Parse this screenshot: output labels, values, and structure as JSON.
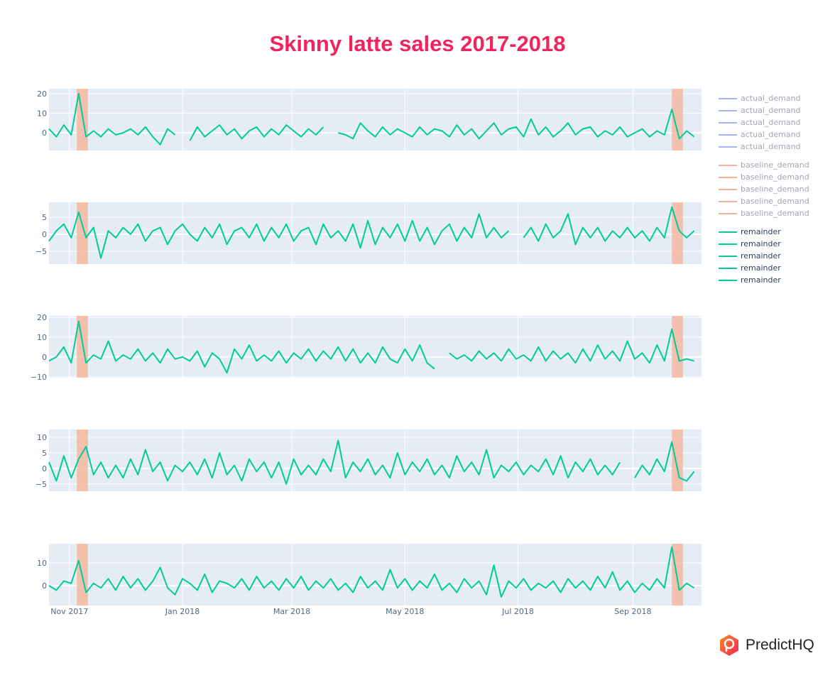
{
  "title": "Skinny latte sales 2017-2018",
  "colors": {
    "title": "#f0245f",
    "plot_bg": "#e5ecf6",
    "grid": "#ffffff",
    "remainder": "#00cc96",
    "actual_demand": "#aab2f5",
    "baseline_demand": "#f3b39c",
    "band": "#f4b9a0",
    "legend_muted_text": "#a0a6b4",
    "legend_text": "#2a3f5f",
    "axis_text": "#506784"
  },
  "legend": {
    "groups": [
      {
        "key": "actual_demand",
        "items": [
          "actual_demand",
          "actual_demand",
          "actual_demand",
          "actual_demand",
          "actual_demand"
        ],
        "muted": true
      },
      {
        "key": "baseline_demand",
        "items": [
          "baseline_demand",
          "baseline_demand",
          "baseline_demand",
          "baseline_demand",
          "baseline_demand"
        ],
        "muted": true
      },
      {
        "key": "remainder",
        "items": [
          "remainder",
          "remainder",
          "remainder",
          "remainder",
          "remainder"
        ],
        "muted": false
      }
    ]
  },
  "logo": {
    "text": "PredictHQ",
    "icon": "map-pin-hexagon-icon"
  },
  "chart_data": {
    "type": "line",
    "x_range": [
      "2017-10-21",
      "2018-10-08"
    ],
    "x_ticks": [
      [
        "2017-11-01",
        "Nov 2017"
      ],
      [
        "2018-01-01",
        "Jan 2018"
      ],
      [
        "2018-03-01",
        "Mar 2018"
      ],
      [
        "2018-05-01",
        "May 2018"
      ],
      [
        "2018-07-01",
        "Jul 2018"
      ],
      [
        "2018-09-01",
        "Sep 2018"
      ]
    ],
    "highlight_bands": [
      [
        "2017-11-05",
        "2017-11-11"
      ],
      [
        "2018-09-22",
        "2018-09-28"
      ]
    ],
    "grid": true,
    "legend_position": "right",
    "x": [
      "2017-10-21",
      "2017-10-25",
      "2017-10-29",
      "2017-11-02",
      "2017-11-06",
      "2017-11-10",
      "2017-11-14",
      "2017-11-18",
      "2017-11-22",
      "2017-11-26",
      "2017-11-30",
      "2017-12-04",
      "2017-12-08",
      "2017-12-12",
      "2017-12-16",
      "2017-12-20",
      "2017-12-24",
      "2017-12-28",
      "2018-01-01",
      "2018-01-05",
      "2018-01-09",
      "2018-01-13",
      "2018-01-17",
      "2018-01-21",
      "2018-01-25",
      "2018-01-29",
      "2018-02-02",
      "2018-02-06",
      "2018-02-10",
      "2018-02-14",
      "2018-02-18",
      "2018-02-22",
      "2018-02-26",
      "2018-03-02",
      "2018-03-06",
      "2018-03-10",
      "2018-03-14",
      "2018-03-18",
      "2018-03-22",
      "2018-03-26",
      "2018-03-30",
      "2018-04-03",
      "2018-04-07",
      "2018-04-11",
      "2018-04-15",
      "2018-04-19",
      "2018-04-23",
      "2018-04-27",
      "2018-05-01",
      "2018-05-05",
      "2018-05-09",
      "2018-05-13",
      "2018-05-17",
      "2018-05-21",
      "2018-05-25",
      "2018-05-29",
      "2018-06-02",
      "2018-06-06",
      "2018-06-10",
      "2018-06-14",
      "2018-06-18",
      "2018-06-22",
      "2018-06-26",
      "2018-06-30",
      "2018-07-04",
      "2018-07-08",
      "2018-07-12",
      "2018-07-16",
      "2018-07-20",
      "2018-07-24",
      "2018-07-28",
      "2018-08-01",
      "2018-08-05",
      "2018-08-09",
      "2018-08-13",
      "2018-08-17",
      "2018-08-21",
      "2018-08-25",
      "2018-08-29",
      "2018-09-02",
      "2018-09-06",
      "2018-09-10",
      "2018-09-14",
      "2018-09-18",
      "2018-09-22",
      "2018-09-26",
      "2018-09-30",
      "2018-10-04"
    ],
    "panels": [
      {
        "series": "remainder",
        "ylim": [
          -9,
          22.5
        ],
        "y_ticks": [
          0,
          10,
          20
        ],
        "values": [
          2,
          -2,
          4,
          -1,
          20,
          -2,
          1,
          -2,
          2,
          -1,
          0,
          2,
          -1,
          3,
          -2,
          -6,
          2,
          -1,
          null,
          -4,
          3,
          -2,
          1,
          4,
          -1,
          2,
          -3,
          1,
          3,
          -2,
          2,
          -1,
          4,
          1,
          -2,
          2,
          -1,
          3,
          null,
          0,
          -1,
          -3,
          5,
          1,
          -2,
          3,
          -1,
          2,
          0,
          -2,
          3,
          -1,
          2,
          1,
          -2,
          4,
          -1,
          2,
          -3,
          1,
          5,
          -1,
          2,
          3,
          -2,
          7,
          -1,
          3,
          -2,
          1,
          5,
          -1,
          2,
          3,
          -2,
          1,
          -1,
          3,
          -2,
          0,
          2,
          -2,
          1,
          -1,
          12,
          -3,
          1,
          -2
        ]
      },
      {
        "series": "remainder",
        "ylim": [
          -8.75,
          9.4
        ],
        "y_ticks": [
          -5,
          0,
          5
        ],
        "values": [
          -2,
          1,
          3,
          -1,
          6.5,
          -1,
          2,
          -7,
          1,
          -1,
          2,
          0,
          3,
          -2,
          1,
          2,
          -3,
          1,
          3,
          0,
          -2,
          2,
          -1,
          3,
          -3,
          1,
          2,
          -1,
          3,
          -2,
          2,
          -1,
          3,
          -2,
          1,
          2,
          -3,
          3,
          -1,
          1,
          -2,
          3,
          -4,
          4,
          -3,
          2,
          -1,
          3,
          -2,
          4,
          -2,
          2,
          -3,
          1,
          3,
          -2,
          2,
          -1,
          6,
          -1,
          2,
          -1,
          1,
          null,
          -1,
          2,
          -2,
          3,
          -1,
          1,
          6,
          -3,
          2,
          -1,
          2,
          -2,
          1,
          -1,
          2,
          -1,
          1,
          -2,
          2,
          -1,
          8,
          1,
          -1,
          1
        ]
      },
      {
        "series": "remainder",
        "ylim": [
          -10.4,
          20.7
        ],
        "y_ticks": [
          -10,
          0,
          10,
          20
        ],
        "values": [
          -2,
          0,
          5,
          -3,
          18,
          -3,
          1,
          -1,
          8,
          -2,
          1,
          -1,
          4,
          -2,
          2,
          -3,
          4,
          -1,
          0,
          -2,
          3,
          -5,
          2,
          -1,
          -8,
          4,
          -1,
          6,
          -2,
          1,
          -2,
          3,
          -3,
          2,
          -1,
          4,
          -2,
          3,
          -1,
          5,
          -2,
          4,
          -3,
          2,
          -3,
          5,
          -1,
          -3,
          4,
          -2,
          6,
          -3,
          -6,
          null,
          2,
          -1,
          1,
          -2,
          3,
          -1,
          2,
          -2,
          4,
          -1,
          1,
          -2,
          5,
          -2,
          3,
          -1,
          2,
          -3,
          4,
          -2,
          6,
          -1,
          3,
          -2,
          8,
          -1,
          2,
          -3,
          6,
          -2,
          14,
          -2,
          -1,
          -2
        ]
      },
      {
        "series": "remainder",
        "ylim": [
          -7.3,
          12.5
        ],
        "y_ticks": [
          -5,
          0,
          5,
          10
        ],
        "values": [
          2,
          -4,
          4,
          -3,
          3,
          7,
          -2,
          2,
          -3,
          1,
          -3,
          3,
          -2,
          6,
          -1,
          2,
          -4,
          1,
          -1,
          2,
          -2,
          3,
          -3,
          5,
          -2,
          1,
          -4,
          3,
          -1,
          2,
          -3,
          2,
          -5,
          3,
          -2,
          1,
          -2,
          3,
          -1,
          9,
          -3,
          2,
          -1,
          3,
          -2,
          1,
          -3,
          5,
          -2,
          2,
          -1,
          3,
          -2,
          1,
          -3,
          4,
          -1,
          2,
          -2,
          6,
          -3,
          1,
          -1,
          2,
          -2,
          1,
          -1,
          3,
          -2,
          4,
          -3,
          2,
          -1,
          3,
          -2,
          1,
          -2,
          2,
          null,
          -3,
          1,
          -2,
          3,
          -1,
          8.5,
          -3,
          -4,
          -1
        ]
      },
      {
        "series": "remainder",
        "ylim": [
          -8.75,
          18.4
        ],
        "y_ticks": [
          0,
          10
        ],
        "values": [
          0,
          -2,
          2,
          1,
          11,
          -3,
          1,
          -1,
          3,
          -2,
          4,
          -1,
          3,
          -2,
          2,
          8,
          -1,
          -4,
          3,
          1,
          -2,
          5,
          -3,
          2,
          1,
          -1,
          3,
          -2,
          4,
          -1,
          2,
          -2,
          3,
          -1,
          4,
          -2,
          2,
          -1,
          3,
          -2,
          1,
          -3,
          4,
          -1,
          2,
          -2,
          7,
          -1,
          3,
          -2,
          2,
          -1,
          5,
          -2,
          1,
          -3,
          3,
          -1,
          2,
          -4,
          9,
          -5,
          2,
          -1,
          3,
          -2,
          1,
          -1,
          2,
          -3,
          3,
          -1,
          2,
          -2,
          4,
          -1,
          6,
          -2,
          2,
          -3,
          1,
          -2,
          3,
          -1,
          17,
          -2,
          1,
          -1
        ]
      }
    ]
  }
}
